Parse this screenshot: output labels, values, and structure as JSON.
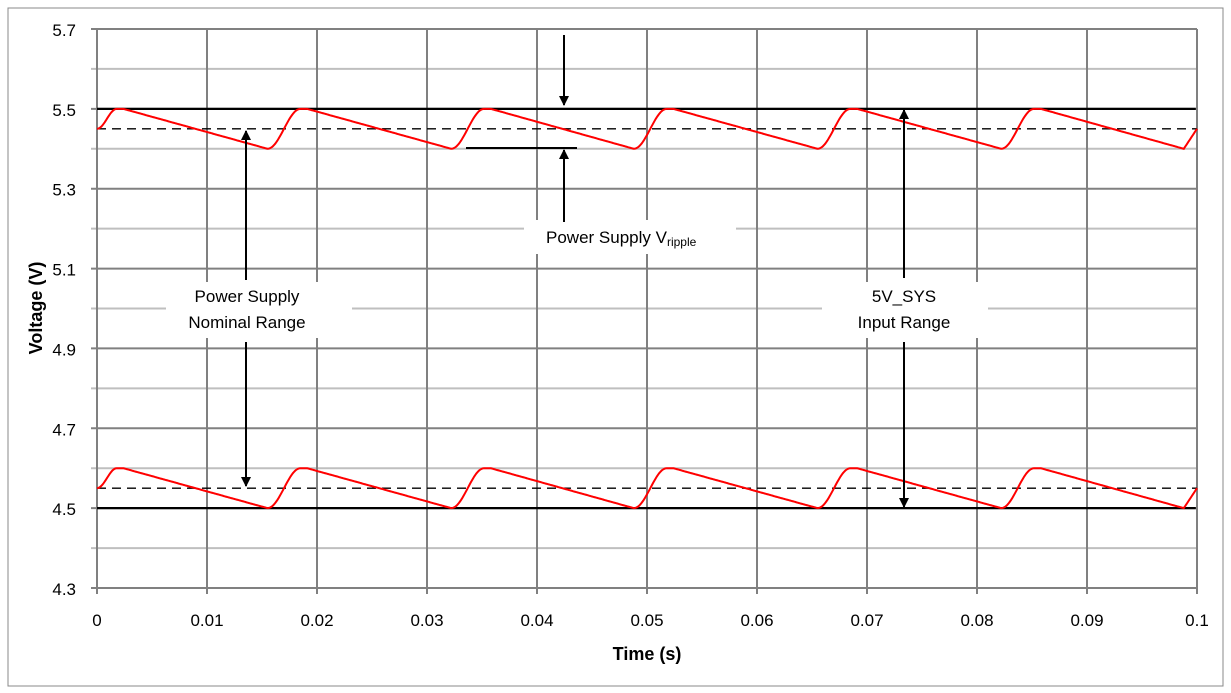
{
  "chart_data": {
    "type": "line",
    "xlabel": "Time (s)",
    "ylabel": "Voltage (V)",
    "xlim": [
      0,
      0.1
    ],
    "ylim": [
      4.3,
      5.7
    ],
    "x_ticks": [
      "0",
      "0.01",
      "0.02",
      "0.03",
      "0.04",
      "0.05",
      "0.06",
      "0.07",
      "0.08",
      "0.09",
      "0.1"
    ],
    "y_ticks": [
      "5.7",
      "5.5",
      "5.3",
      "5.1",
      "4.9",
      "4.7",
      "4.5",
      "4.3"
    ],
    "grid": true,
    "colors": {
      "waveform": "#ff0000",
      "limits": "#000000",
      "grid_major": "#808080",
      "grid_minor": "#bfbfbf"
    },
    "series": [
      {
        "role": "upper ripple waveform",
        "peak": 5.5,
        "trough": 5.4,
        "start": [
          0,
          5.45
        ],
        "peak_times": [
          0.0018,
          0.0185,
          0.0352,
          0.0518,
          0.0685,
          0.0852
        ],
        "trough_times": [
          0.0155,
          0.0322,
          0.0488,
          0.0655,
          0.0822,
          0.0988
        ],
        "end": [
          0.1,
          5.45
        ]
      },
      {
        "role": "lower ripple waveform",
        "peak": 4.6,
        "trough": 4.5,
        "start": [
          0,
          4.55
        ],
        "peak_times": [
          0.0018,
          0.0185,
          0.0352,
          0.0518,
          0.0685,
          0.0852
        ],
        "trough_times": [
          0.0155,
          0.0322,
          0.0488,
          0.0655,
          0.0822,
          0.0988
        ],
        "end": [
          0.1,
          4.55
        ]
      }
    ],
    "reference_lines": [
      {
        "value": 5.5,
        "style": "solid"
      },
      {
        "value": 5.45,
        "style": "dashed"
      },
      {
        "value": 4.55,
        "style": "dashed"
      },
      {
        "value": 4.5,
        "style": "solid"
      }
    ],
    "annotations": {
      "nominal_range": [
        "Power Supply",
        "Nominal Range"
      ],
      "input_range": [
        "5V_SYS",
        "Input Range"
      ],
      "ripple": {
        "text": "Power Supply V",
        "subscript": "ripple"
      }
    }
  }
}
